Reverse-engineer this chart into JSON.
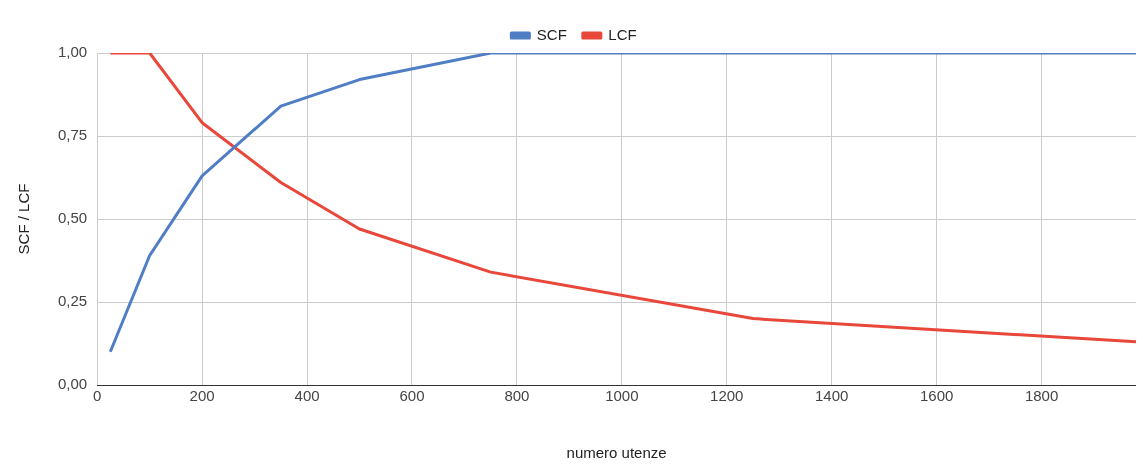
{
  "chart_data": {
    "type": "line",
    "xlabel": "numero utenze",
    "ylabel": "SCF / LCF",
    "xlim": [
      0,
      1980
    ],
    "xticks": [
      0,
      200,
      400,
      600,
      800,
      1000,
      1200,
      1400,
      1600,
      1800
    ],
    "ylim": [
      0,
      1
    ],
    "yticks": [
      {
        "value": 0,
        "label": "0,00"
      },
      {
        "value": 0.25,
        "label": "0,25"
      },
      {
        "value": 0.5,
        "label": "0,50"
      },
      {
        "value": 0.75,
        "label": "0,75"
      },
      {
        "value": 1,
        "label": "1,00"
      }
    ],
    "grid": true,
    "legend": "top",
    "marker": "none",
    "line_style": "solid",
    "series": [
      {
        "name": "SCF",
        "color": "#4f7ec4",
        "x": [
          25,
          100,
          200,
          350,
          500,
          750,
          1250,
          1980
        ],
        "values": [
          0.1,
          0.39,
          0.63,
          0.84,
          0.92,
          1.0,
          1.0,
          1.0
        ]
      },
      {
        "name": "LCF",
        "color": "#e8473a",
        "x": [
          25,
          100,
          200,
          350,
          500,
          750,
          1250,
          1980
        ],
        "values": [
          1.0,
          1.0,
          0.79,
          0.61,
          0.47,
          0.34,
          0.2,
          0.13
        ]
      }
    ]
  }
}
